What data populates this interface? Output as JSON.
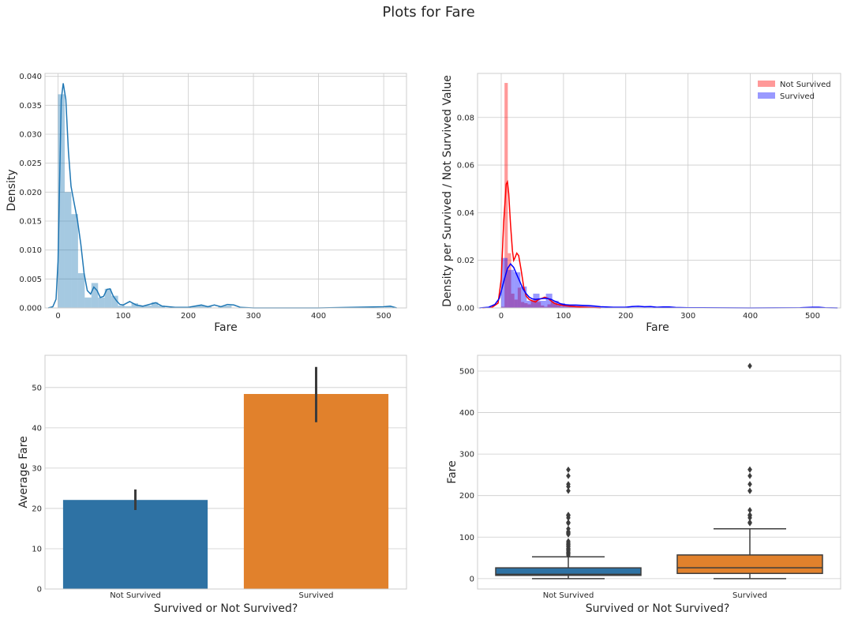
{
  "figure": {
    "suptitle": "Plots for Fare"
  },
  "chart_data": [
    {
      "type": "histogram",
      "title": "",
      "xlabel": "Fare",
      "ylabel": "Density",
      "xlim": [
        -20,
        535
      ],
      "ylim": [
        0,
        0.0405
      ],
      "xticks": [
        0,
        100,
        200,
        300,
        400,
        500
      ],
      "yticks": [
        0,
        0.005,
        0.01,
        0.015,
        0.02,
        0.025,
        0.03,
        0.035,
        0.04
      ],
      "ytick_labels": [
        "0.000",
        "0.005",
        "0.010",
        "0.015",
        "0.020",
        "0.025",
        "0.030",
        "0.035",
        "0.040"
      ],
      "grid": true,
      "color": "#1f77b4",
      "bin_width": 10.25,
      "bins_start": 0,
      "hist_values": [
        0.0369,
        0.02,
        0.0162,
        0.006,
        0.0018,
        0.0043,
        0.0018,
        0.0033,
        0.0021,
        0.0004,
        0.0003,
        0.0008,
        0.0003,
        0.0004,
        0.001,
        0.0004,
        0,
        0,
        0,
        0,
        0.0003,
        0.0004,
        0.0003,
        0,
        0.0003,
        0.0004,
        0,
        0,
        0,
        0,
        0,
        0,
        0,
        0,
        0,
        0,
        0,
        0,
        0,
        0,
        0,
        0,
        0,
        0,
        0,
        0,
        0,
        0,
        0,
        0.0003
      ],
      "kde_x": [
        -15,
        -8,
        -3,
        0,
        3,
        5,
        8,
        12,
        16,
        20,
        25,
        30,
        35,
        40,
        45,
        50,
        55,
        60,
        65,
        70,
        75,
        80,
        85,
        90,
        95,
        100,
        110,
        120,
        130,
        140,
        150,
        160,
        180,
        200,
        210,
        220,
        230,
        240,
        250,
        260,
        270,
        280,
        300,
        400,
        500,
        510,
        520
      ],
      "kde_y": [
        0,
        0.0002,
        0.0015,
        0.008,
        0.025,
        0.036,
        0.0388,
        0.036,
        0.027,
        0.021,
        0.018,
        0.015,
        0.011,
        0.006,
        0.003,
        0.0024,
        0.0036,
        0.003,
        0.0018,
        0.002,
        0.0032,
        0.0033,
        0.002,
        0.0012,
        0.0006,
        0.0005,
        0.0011,
        0.0005,
        0.0003,
        0.0006,
        0.0009,
        0.0003,
        0.0001,
        0.0001,
        0.0003,
        0.0005,
        0.0002,
        0.0005,
        0.0002,
        0.0006,
        0.0005,
        0.0001,
        0,
        0,
        0.0002,
        0.0003,
        0
      ]
    },
    {
      "type": "histogram",
      "title": "",
      "xlabel": "Fare",
      "ylabel": "Density per Survived / Not Survived Value",
      "xlim": [
        -38,
        545
      ],
      "ylim": [
        0,
        0.0985
      ],
      "xticks": [
        0,
        100,
        200,
        300,
        400,
        500
      ],
      "yticks": [
        0,
        0.02,
        0.04,
        0.06,
        0.08
      ],
      "ytick_labels": [
        "0.00",
        "0.02",
        "0.04",
        "0.06",
        "0.08"
      ],
      "grid": true,
      "legend": "top-right",
      "series": [
        {
          "name": "Not Survived",
          "color": "#ff0000",
          "bin_width": 5.3,
          "bins_start": 0,
          "hist_values": [
            0.0005,
            0.0945,
            0.023,
            0.006,
            0.0035,
            0.0085,
            0.0025,
            0.002,
            0.0015,
            0.003,
            0.004,
            0.0025,
            0.001,
            0.0005,
            0.0015,
            0.0025,
            0.002,
            0.001,
            0.0005,
            0.0005,
            0.0005,
            0.0005,
            0.0005,
            0.0005,
            0.0005,
            0.0005,
            0.0002,
            0.0002,
            0.0002,
            0.0002
          ],
          "kde_x": [
            -30,
            -15,
            -5,
            0,
            4,
            8,
            10,
            12,
            15,
            18,
            20,
            22,
            25,
            28,
            32,
            36,
            40,
            45,
            50,
            55,
            60,
            65,
            70,
            75,
            80,
            85,
            90,
            100,
            120,
            140,
            150,
            160
          ],
          "kde_y": [
            0,
            0.0002,
            0.002,
            0.012,
            0.036,
            0.052,
            0.053,
            0.048,
            0.035,
            0.024,
            0.02,
            0.021,
            0.023,
            0.022,
            0.016,
            0.009,
            0.005,
            0.0035,
            0.003,
            0.0025,
            0.0035,
            0.004,
            0.0045,
            0.004,
            0.003,
            0.002,
            0.0015,
            0.001,
            0.0005,
            0.0002,
            0.0001,
            0
          ]
        },
        {
          "name": "Survived",
          "color": "#0000ff",
          "bin_width": 10.25,
          "bins_start": 0,
          "hist_values": [
            0.021,
            0.016,
            0.015,
            0.009,
            0.003,
            0.006,
            0.003,
            0.006,
            0.003,
            0.002,
            0.001,
            0.001,
            0.001,
            0.001,
            0.0008,
            0.0005,
            0.0003,
            0.0003,
            0.0003,
            0.0003,
            0.0003,
            0.0003,
            0.0003,
            0.0003,
            0.0003,
            0.0003,
            0,
            0,
            0,
            0,
            0,
            0,
            0,
            0,
            0,
            0,
            0,
            0,
            0,
            0,
            0,
            0,
            0,
            0,
            0,
            0,
            0,
            0,
            0,
            0.0003
          ],
          "kde_x": [
            -35,
            -20,
            -10,
            -3,
            0,
            5,
            10,
            15,
            20,
            25,
            30,
            35,
            40,
            45,
            50,
            55,
            60,
            65,
            70,
            75,
            80,
            85,
            90,
            95,
            100,
            110,
            120,
            130,
            140,
            150,
            160,
            180,
            200,
            210,
            220,
            230,
            240,
            250,
            260,
            270,
            280,
            300,
            400,
            480,
            500,
            510,
            520,
            540
          ],
          "kde_y": [
            0,
            0.0003,
            0.0015,
            0.004,
            0.007,
            0.012,
            0.0165,
            0.0185,
            0.017,
            0.014,
            0.011,
            0.008,
            0.006,
            0.0045,
            0.0038,
            0.0035,
            0.0037,
            0.0039,
            0.004,
            0.0039,
            0.0036,
            0.003,
            0.0024,
            0.0018,
            0.0014,
            0.0012,
            0.0012,
            0.0011,
            0.001,
            0.0008,
            0.0005,
            0.0003,
            0.0003,
            0.0006,
            0.0007,
            0.0005,
            0.0006,
            0.0003,
            0.0004,
            0.0004,
            0.0002,
            0.0001,
            0,
            0.0001,
            0.0003,
            0.0003,
            0.0001,
            0
          ]
        }
      ]
    },
    {
      "type": "bar",
      "title": "",
      "xlabel": "Survived or Not Survived?",
      "ylabel": "Average Fare",
      "categories": [
        "Not Survived",
        "Survived"
      ],
      "values": [
        22.1,
        48.4
      ],
      "errors": [
        [
          19.6,
          24.7
        ],
        [
          41.4,
          55.1
        ]
      ],
      "colors": [
        "#2e72a4",
        "#e1812c"
      ],
      "ylim": [
        0,
        58
      ],
      "yticks": [
        0,
        10,
        20,
        30,
        40,
        50
      ],
      "ytick_labels": [
        "0",
        "10",
        "20",
        "30",
        "40",
        "50"
      ],
      "grid": true
    },
    {
      "type": "box",
      "title": "",
      "xlabel": "Survived or Not Survived?",
      "ylabel": "Fare",
      "categories": [
        "Not Survived",
        "Survived"
      ],
      "colors": [
        "#2e72a4",
        "#e1812c"
      ],
      "ylim": [
        -25,
        538
      ],
      "yticks": [
        0,
        100,
        200,
        300,
        400,
        500
      ],
      "ytick_labels": [
        "0",
        "100",
        "200",
        "300",
        "400",
        "500"
      ],
      "grid": true,
      "boxes": [
        {
          "whisker_low": 0,
          "q1": 7.85,
          "median": 10.5,
          "q3": 26,
          "whisker_high": 52.5,
          "outliers": [
            56.5,
            59.4,
            61.2,
            63.4,
            66.6,
            69.55,
            71.3,
            73.5,
            77.3,
            79.2,
            81.9,
            83.5,
            86.5,
            90,
            106.4,
            108.9,
            110.9,
            113.3,
            120,
            133.6,
            135.6,
            146.5,
            151.55,
            153.46,
            211.5,
            221.8,
            227.5,
            247.5,
            262.4
          ]
        },
        {
          "whisker_low": 0,
          "q1": 12.5,
          "median": 26,
          "q3": 57,
          "whisker_high": 120,
          "outliers": [
            133.65,
            135.63,
            146.52,
            151.55,
            153.46,
            164.87,
            211.34,
            211.5,
            227.5,
            247.52,
            262.38,
            263,
            512.33
          ]
        }
      ]
    }
  ]
}
